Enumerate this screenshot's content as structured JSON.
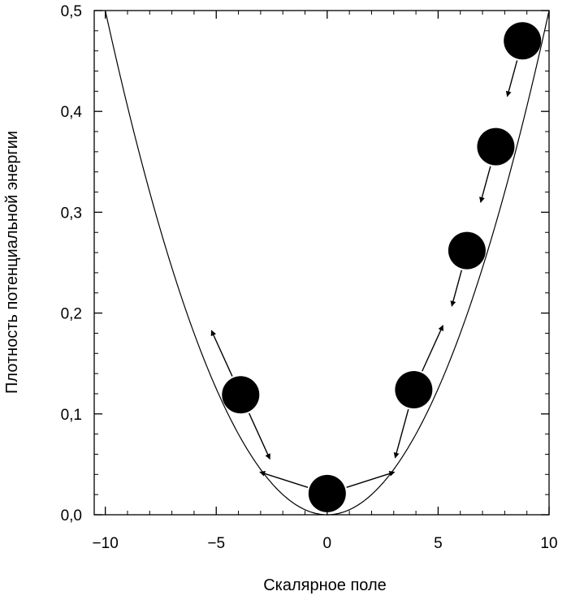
{
  "chart_data": {
    "type": "line",
    "title": "",
    "xlabel": "Скалярное поле",
    "ylabel": "Плотность потенциальной энергии",
    "xlim": [
      -10.5,
      10
    ],
    "ylim": [
      0,
      0.5
    ],
    "x_ticks": [
      -10,
      -5,
      0,
      5,
      10
    ],
    "x_tick_labels": [
      "−10",
      "−5",
      "0",
      "5",
      "10"
    ],
    "y_ticks": [
      0,
      0.1,
      0.2,
      0.3,
      0.4,
      0.5
    ],
    "y_tick_labels": [
      "0,0",
      "0,1",
      "0,2",
      "0,3",
      "0,4",
      "0,5"
    ],
    "grid": false,
    "curve": {
      "formula": "y = 0.005 * x^2",
      "x_range": [
        -10,
        10
      ]
    },
    "balls": [
      {
        "x": -3.9,
        "y": 0.119,
        "arrows": [
          "up-left",
          "down-right"
        ]
      },
      {
        "x": 0,
        "y": 0.021,
        "arrows": [
          "left",
          "right"
        ]
      },
      {
        "x": 3.9,
        "y": 0.124,
        "arrows": [
          "up-right",
          "down-left"
        ]
      },
      {
        "x": 6.3,
        "y": 0.262,
        "arrows": [
          "down-left"
        ]
      },
      {
        "x": 7.6,
        "y": 0.365,
        "arrows": [
          "down-left"
        ]
      },
      {
        "x": 8.8,
        "y": 0.47,
        "arrows": [
          "down-left"
        ]
      }
    ],
    "colors": {
      "curve": "#000000",
      "ball": "#000000",
      "background": "#ffffff"
    }
  }
}
